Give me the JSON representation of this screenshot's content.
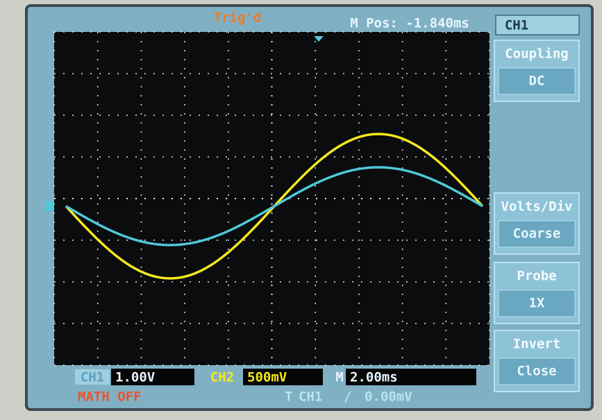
{
  "top_bar": {
    "status": "Trig'd",
    "position": "M Pos: -1.840ms"
  },
  "menu": {
    "title": "CH1",
    "items": [
      {
        "label": "Coupling",
        "value": "DC"
      },
      {
        "label": "Volts/Div",
        "value": "Coarse"
      },
      {
        "label": "Probe",
        "value": "1X"
      },
      {
        "label": "Invert",
        "value": "Close"
      }
    ]
  },
  "status_bar": {
    "ch1_label": "CH1",
    "ch1_scale": "1.00V",
    "ch2_label": "CH2",
    "ch2_scale": "500mV",
    "timebase_label": "M",
    "timebase": "2.00ms",
    "math": "MATH OFF",
    "trigger_source": "CH1",
    "trigger_slope": "/",
    "trigger_level": "0.00mV"
  }
}
